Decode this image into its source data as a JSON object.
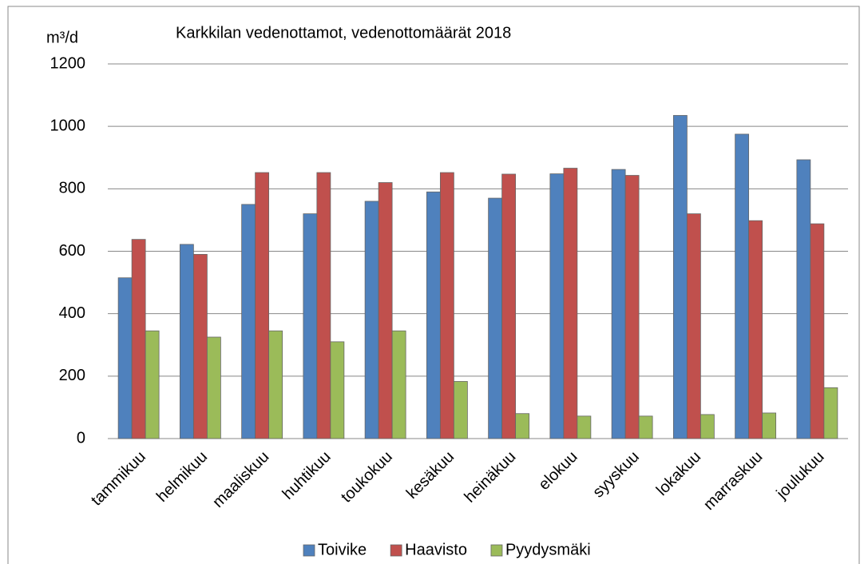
{
  "chart_data": {
    "type": "bar",
    "title": "Karkkilan vedenottamot, vedenottomäärät 2018",
    "y_label": "m³/d",
    "categories": [
      "tammikuu",
      "helmikuu",
      "maaliskuu",
      "huhtikuu",
      "toukokuu",
      "kesäkuu",
      "heinäkuu",
      "elokuu",
      "syyskuu",
      "lokakuu",
      "marraskuu",
      "joulukuu"
    ],
    "series": [
      {
        "name": "Toivike",
        "color": "#4f81bd",
        "values": [
          515,
          622,
          750,
          720,
          760,
          790,
          770,
          848,
          862,
          1035,
          975,
          893
        ]
      },
      {
        "name": "Haavisto",
        "color": "#c0504d",
        "values": [
          638,
          590,
          852,
          852,
          820,
          852,
          847,
          866,
          843,
          720,
          698,
          688
        ]
      },
      {
        "name": "Pyydysmäki",
        "color": "#9bbb59",
        "values": [
          345,
          325,
          345,
          310,
          345,
          183,
          80,
          72,
          72,
          77,
          82,
          163
        ]
      }
    ],
    "ylim": [
      0,
      1200
    ],
    "yticks": [
      0,
      200,
      400,
      600,
      800,
      1000,
      1200
    ],
    "grid": true,
    "legend": "bottom"
  }
}
